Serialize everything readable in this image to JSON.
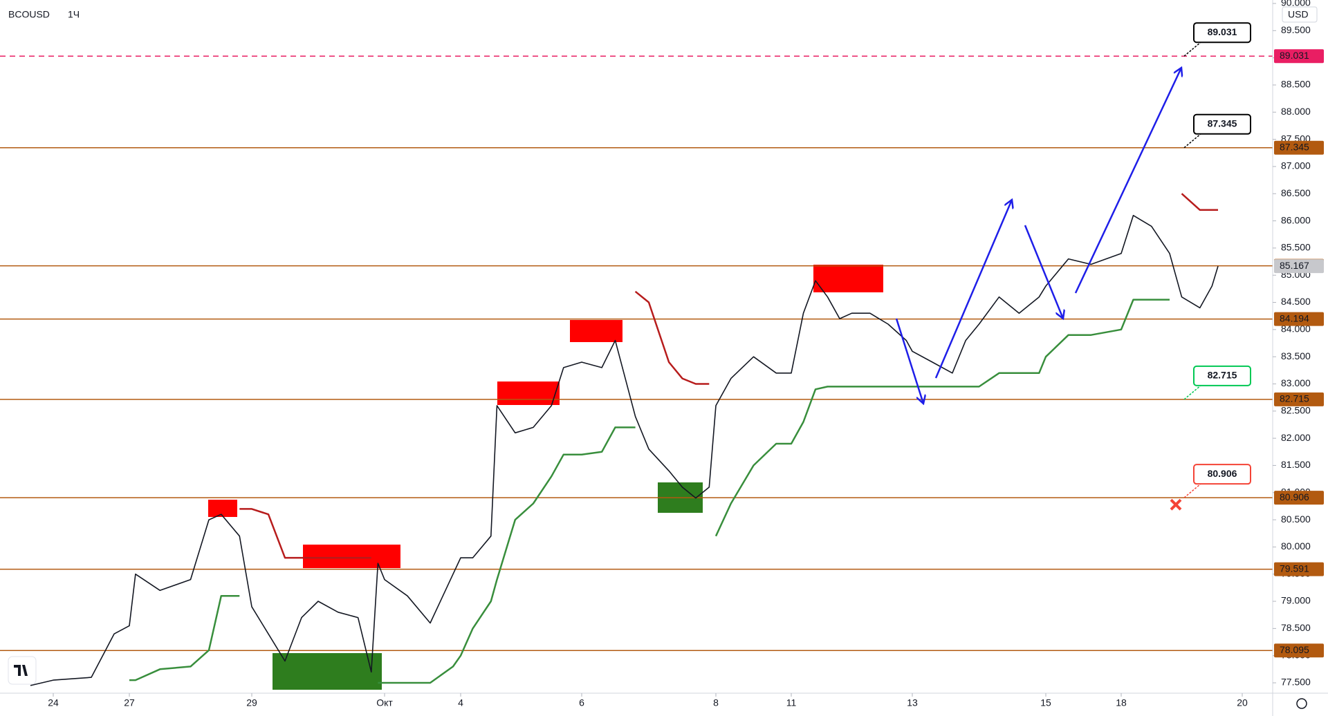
{
  "chart_data": {
    "type": "line",
    "title": "BCOUSD",
    "interval": "1Ч",
    "currency": "USD",
    "xticks": [
      {
        "value": 0,
        "label": "24"
      },
      {
        "value": 1,
        "label": "27"
      },
      {
        "value": 3,
        "label": "29"
      },
      {
        "value": 5,
        "label": "Окт"
      },
      {
        "value": 6,
        "label": "4"
      },
      {
        "value": 8,
        "label": "6"
      },
      {
        "value": 10,
        "label": "8"
      },
      {
        "value": 11,
        "label": "11"
      },
      {
        "value": 13,
        "label": "13"
      },
      {
        "value": 15,
        "label": "15"
      },
      {
        "value": 16,
        "label": "18"
      },
      {
        "value": 18,
        "label": "20"
      }
    ],
    "ylim": [
      77.5,
      90
    ],
    "yticks": [
      {
        "value": 77.5,
        "label": "77.500"
      },
      {
        "value": 78,
        "label": "78.000"
      },
      {
        "value": 78.5,
        "label": "78.500"
      },
      {
        "value": 79,
        "label": "79.000"
      },
      {
        "value": 79.5,
        "label": "79.500"
      },
      {
        "value": 80,
        "label": "80.000"
      },
      {
        "value": 80.5,
        "label": "80.500"
      },
      {
        "value": 81,
        "label": "81.000"
      },
      {
        "value": 81.5,
        "label": "81.500"
      },
      {
        "value": 82,
        "label": "82.000"
      },
      {
        "value": 82.5,
        "label": "82.500"
      },
      {
        "value": 83,
        "label": "83.000"
      },
      {
        "value": 83.5,
        "label": "83.500"
      },
      {
        "value": 84,
        "label": "84.000"
      },
      {
        "value": 84.5,
        "label": "84.500"
      },
      {
        "value": 85,
        "label": "85.000"
      },
      {
        "value": 85.5,
        "label": "85.500"
      },
      {
        "value": 86,
        "label": "86.000"
      },
      {
        "value": 86.5,
        "label": "86.500"
      },
      {
        "value": 87,
        "label": "87.000"
      },
      {
        "value": 87.5,
        "label": "87.500"
      },
      {
        "value": 88,
        "label": "88.000"
      },
      {
        "value": 88.5,
        "label": "88.500"
      },
      {
        "value": 89,
        "label": "89.000"
      },
      {
        "value": 89.5,
        "label": "89.500"
      },
      {
        "value": 90,
        "label": "90.000"
      }
    ],
    "x": [
      -0.3,
      0,
      0.5,
      0.8,
      1,
      1.1,
      1.5,
      2,
      2.3,
      2.5,
      2.8,
      3,
      3.25,
      3.5,
      3.75,
      4,
      4.3,
      4.6,
      4.8,
      4.9,
      5,
      5.3,
      5.6,
      5.9,
      6,
      6.2,
      6.5,
      6.6,
      6.9,
      7.2,
      7.5,
      7.7,
      8,
      8.3,
      8.5,
      8.8,
      9,
      9.3,
      9.5,
      9.7,
      9.9,
      10,
      10.2,
      10.5,
      10.8,
      11,
      11.2,
      11.4,
      11.6,
      11.8,
      12,
      12.3,
      12.6,
      12.9,
      13,
      13.3,
      13.6,
      13.8,
      14,
      14.3,
      14.6,
      14.9,
      15,
      15.3,
      15.6,
      16,
      16.2,
      16.5,
      16.8,
      17,
      17.3,
      17.5,
      17.6
    ],
    "series": [
      {
        "color": "#131722",
        "values": [
          77.45,
          77.55,
          77.6,
          78.4,
          78.55,
          79.5,
          79.2,
          79.4,
          80.5,
          80.6,
          80.2,
          78.9,
          78.4,
          77.9,
          78.7,
          79.0,
          78.8,
          78.7,
          77.7,
          79.7,
          79.4,
          79.1,
          78.6,
          79.5,
          79.8,
          79.8,
          80.2,
          82.6,
          82.1,
          82.2,
          82.6,
          83.3,
          83.4,
          83.3,
          83.8,
          82.4,
          81.8,
          81.4,
          81.1,
          80.9,
          81.1,
          82.6,
          83.1,
          83.5,
          83.2,
          83.2,
          84.3,
          84.9,
          84.6,
          84.2,
          84.3,
          84.3,
          84.1,
          83.8,
          83.6,
          83.4,
          83.2,
          83.8,
          84.1,
          84.6,
          84.3,
          84.6,
          84.8,
          85.3,
          85.2,
          85.4,
          86.1,
          85.9,
          85.4,
          84.6,
          84.4,
          84.8,
          85.167
        ]
      },
      {
        "color": "#388e3c",
        "values": [
          null,
          null,
          null,
          null,
          77.55,
          77.55,
          77.75,
          77.8,
          78.1,
          79.1,
          79.1,
          null,
          null,
          null,
          null,
          null,
          null,
          null,
          null,
          77.5,
          77.5,
          77.5,
          77.5,
          77.8,
          78.0,
          78.5,
          79.0,
          79.4,
          80.5,
          80.8,
          81.3,
          81.7,
          81.7,
          81.75,
          82.2,
          82.2,
          null,
          null,
          null,
          null,
          null,
          80.2,
          80.8,
          81.5,
          81.9,
          81.9,
          82.3,
          82.9,
          82.95,
          82.95,
          82.95,
          82.95,
          82.95,
          82.95,
          82.95,
          82.95,
          82.95,
          82.95,
          82.95,
          83.2,
          83.2,
          83.2,
          83.5,
          83.9,
          83.9,
          84.0,
          84.55,
          84.55,
          84.55,
          null,
          null,
          null,
          null
        ]
      },
      {
        "color": "#b71c1c",
        "values": [
          null,
          null,
          null,
          null,
          null,
          null,
          null,
          null,
          null,
          null,
          80.7,
          80.7,
          80.6,
          79.8,
          79.8,
          79.8,
          79.8,
          79.8,
          79.8,
          null,
          null,
          null,
          null,
          null,
          null,
          null,
          null,
          null,
          null,
          null,
          null,
          null,
          null,
          null,
          null,
          84.7,
          84.5,
          83.4,
          83.1,
          83.0,
          83.0,
          null,
          null,
          null,
          null,
          null,
          null,
          null,
          null,
          null,
          null,
          null,
          null,
          null,
          null,
          null,
          null,
          null,
          null,
          null,
          null,
          null,
          null,
          null,
          null,
          null,
          null,
          null,
          null,
          86.5,
          86.2,
          86.2,
          86.2
        ]
      }
    ],
    "levels": [
      {
        "value": 89.031,
        "color": "#e91e63",
        "dashed": true
      },
      {
        "value": 87.345,
        "color": "#b25a10",
        "dashed": false
      },
      {
        "value": 85.173,
        "color": "#b25a10",
        "dashed": false
      },
      {
        "value": 84.194,
        "color": "#b25a10",
        "dashed": false
      },
      {
        "value": 82.715,
        "color": "#b25a10",
        "dashed": false
      },
      {
        "value": 80.906,
        "color": "#b25a10",
        "dashed": false
      },
      {
        "value": 79.591,
        "color": "#b25a10",
        "dashed": false
      },
      {
        "value": 78.095,
        "color": "#b25a10",
        "dashed": false
      }
    ],
    "last_price": 85.167,
    "callouts": [
      {
        "value": 89.031,
        "color": "#000000"
      },
      {
        "value": 87.345,
        "color": "#000000"
      },
      {
        "value": 82.715,
        "color": "#00c853"
      },
      {
        "value": 80.906,
        "color": "#f44336"
      }
    ]
  }
}
